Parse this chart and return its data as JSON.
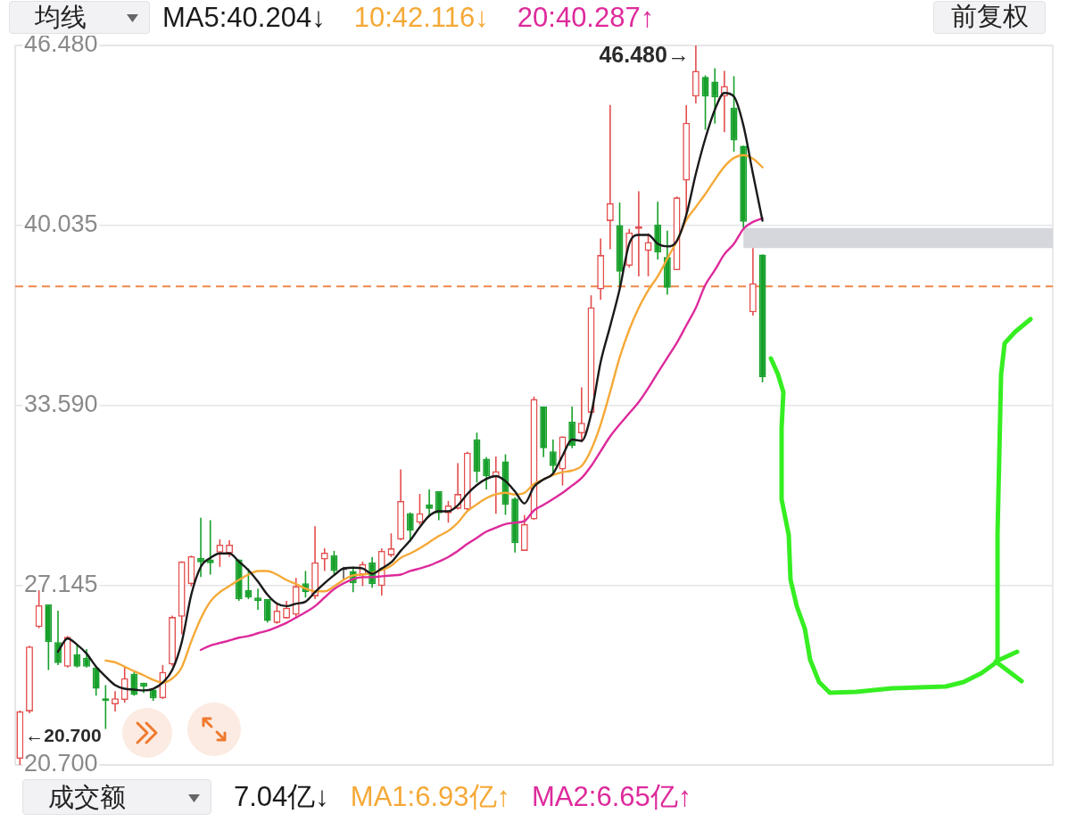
{
  "chart_data": {
    "type": "candlestick",
    "categories": [
      null,
      null,
      null,
      null,
      null,
      null,
      null,
      null,
      null,
      null,
      null,
      null,
      null,
      null,
      null,
      null,
      null,
      null,
      null,
      null,
      null,
      null,
      null,
      null,
      null,
      null,
      null,
      null,
      null,
      null,
      null,
      null,
      null,
      null,
      null,
      null,
      null,
      null,
      null,
      null,
      null,
      null,
      null,
      null,
      null,
      null,
      null,
      null,
      null,
      null,
      null,
      null,
      null,
      null,
      null,
      null,
      null,
      null,
      null,
      null,
      null,
      null,
      null,
      null,
      null,
      null,
      null,
      null,
      null,
      null,
      null,
      null,
      null,
      null,
      null,
      null,
      null,
      null,
      null,
      null,
      null,
      null,
      null,
      null,
      null,
      null,
      null,
      null,
      null,
      null,
      null,
      null,
      null,
      null,
      null,
      null,
      null,
      null,
      null,
      null,
      null,
      null,
      null,
      null,
      null,
      null,
      null,
      null,
      null
    ],
    "ohlc": [
      [
        20.92,
        22.65,
        20.7,
        22.62
      ],
      [
        22.62,
        24.97,
        22.55,
        24.94
      ],
      [
        25.64,
        26.96,
        25.6,
        26.42
      ],
      [
        26.45,
        26.45,
        24.1,
        25.1
      ],
      [
        25.1,
        26.23,
        24.28,
        24.35
      ],
      [
        24.22,
        25.32,
        24.19,
        25.29
      ],
      [
        24.66,
        24.98,
        24.19,
        24.22
      ],
      [
        24.54,
        24.85,
        24.19,
        24.22
      ],
      [
        24.19,
        24.19,
        23.18,
        23.43
      ],
      [
        23.09,
        23.56,
        21.99,
        23.0
      ],
      [
        22.87,
        23.34,
        22.62,
        23.09
      ],
      [
        23.03,
        24.19,
        22.93,
        23.81
      ],
      [
        23.97,
        24.03,
        23.18,
        23.21
      ],
      [
        23.65,
        23.65,
        23.28,
        23.5
      ],
      [
        23.4,
        23.4,
        23.0,
        23.09
      ],
      [
        23.09,
        24.28,
        23.06,
        24.03
      ],
      [
        24.3,
        26.05,
        24.25,
        26.0
      ],
      [
        26.01,
        28.0,
        25.38,
        27.99
      ],
      [
        27.18,
        28.2,
        27.1,
        28.18
      ],
      [
        28.12,
        29.56,
        27.43,
        27.96
      ],
      [
        28.06,
        29.47,
        27.52,
        27.93
      ],
      [
        28.31,
        28.78,
        27.8,
        28.59
      ],
      [
        28.28,
        28.75,
        28.15,
        28.59
      ],
      [
        28.06,
        28.06,
        26.58,
        26.64
      ],
      [
        26.96,
        27.74,
        26.64,
        26.7
      ],
      [
        26.7,
        27.02,
        26.26,
        26.58
      ],
      [
        26.64,
        26.64,
        25.8,
        25.86
      ],
      [
        25.79,
        26.48,
        25.76,
        26.23
      ],
      [
        25.95,
        26.58,
        25.95,
        26.33
      ],
      [
        26.08,
        27.4,
        26.01,
        27.11
      ],
      [
        27.21,
        27.65,
        26.7,
        26.89
      ],
      [
        26.74,
        29.25,
        26.64,
        27.96
      ],
      [
        28.06,
        28.46,
        27.65,
        28.31
      ],
      [
        28.21,
        28.37,
        27.52,
        27.65
      ],
      [
        27.68,
        27.8,
        27.33,
        27.68
      ],
      [
        27.65,
        27.8,
        26.89,
        27.21
      ],
      [
        27.52,
        27.99,
        27.11,
        27.9
      ],
      [
        27.96,
        28.15,
        27.05,
        27.18
      ],
      [
        27.11,
        28.46,
        26.77,
        28.37
      ],
      [
        28.21,
        29.0,
        28.15,
        28.46
      ],
      [
        28.78,
        31.29,
        28.75,
        30.16
      ],
      [
        29.72,
        29.75,
        28.69,
        29.09
      ],
      [
        29.38,
        30.41,
        29.31,
        29.72
      ],
      [
        30.04,
        30.57,
        29.57,
        29.88
      ],
      [
        30.51,
        30.51,
        29.47,
        29.72
      ],
      [
        29.72,
        30.16,
        29.38,
        30.0
      ],
      [
        29.88,
        31.51,
        29.85,
        30.41
      ],
      [
        29.85,
        31.92,
        29.82,
        31.89
      ],
      [
        32.36,
        32.61,
        30.82,
        31.2
      ],
      [
        31.67,
        31.73,
        30.57,
        31.04
      ],
      [
        31.0,
        31.75,
        29.7,
        31.23
      ],
      [
        31.58,
        31.83,
        29.66,
        30.02
      ],
      [
        30.24,
        30.29,
        28.31,
        28.65
      ],
      [
        28.37,
        29.65,
        28.37,
        29.33
      ],
      [
        29.5,
        33.9,
        29.48,
        33.81
      ],
      [
        33.54,
        33.54,
        31.73,
        32.05
      ],
      [
        31.94,
        32.36,
        31.14,
        31.41
      ],
      [
        31.29,
        32.47,
        30.71,
        32.47
      ],
      [
        33.0,
        33.54,
        32.05,
        32.14
      ],
      [
        32.58,
        34.23,
        32.26,
        32.96
      ],
      [
        33.32,
        37.53,
        33.27,
        37.1
      ],
      [
        37.74,
        39.56,
        37.37,
        38.97
      ],
      [
        40.19,
        44.35,
        39.18,
        40.83
      ],
      [
        40.04,
        40.85,
        37.85,
        38.37
      ],
      [
        38.59,
        39.91,
        38.52,
        39.78
      ],
      [
        39.91,
        41.26,
        38.21,
        40.0
      ],
      [
        39.12,
        39.75,
        38.21,
        39.44
      ],
      [
        40.06,
        40.88,
        38.81,
        39.06
      ],
      [
        38.9,
        39.84,
        37.55,
        37.8
      ],
      [
        38.43,
        41.07,
        38.43,
        41.04
      ],
      [
        41.64,
        44.34,
        40.41,
        43.71
      ],
      [
        44.65,
        46.48,
        44.4,
        45.57
      ],
      [
        45.35,
        45.41,
        43.46,
        44.65
      ],
      [
        45.19,
        45.66,
        43.68,
        44.62
      ],
      [
        44.65,
        45.57,
        43.37,
        45.03
      ],
      [
        44.25,
        45.38,
        42.67,
        43.08
      ],
      [
        42.89,
        42.89,
        39.94,
        40.16
      ],
      [
        36.92,
        39.22,
        36.8,
        37.96
      ],
      [
        38.99,
        38.99,
        34.41,
        34.6
      ],
      null,
      null,
      null,
      null,
      null,
      null,
      null,
      null,
      null,
      null,
      null,
      null,
      null,
      null,
      null,
      null,
      null,
      null,
      null,
      null,
      null,
      null,
      null,
      null,
      null,
      null,
      null,
      null,
      null,
      null
    ],
    "colors": [
      "#e34d4d",
      "#e34d4d",
      "#e34d4d",
      "#17a02b",
      "#17a02b",
      "#e34d4d",
      "#17a02b",
      "#17a02b",
      "#17a02b",
      "#17a02b",
      "#e34d4d",
      "#e34d4d",
      "#17a02b",
      "#17a02b",
      "#17a02b",
      "#e34d4d",
      "#e34d4d",
      "#e34d4d",
      "#e34d4d",
      "#17a02b",
      "#17a02b",
      "#e34d4d",
      "#e34d4d",
      "#17a02b",
      "#17a02b",
      "#17a02b",
      "#17a02b",
      "#e34d4d",
      "#e34d4d",
      "#e34d4d",
      "#17a02b",
      "#e34d4d",
      "#e34d4d",
      "#17a02b",
      "#555555",
      "#17a02b",
      "#e34d4d",
      "#17a02b",
      "#e34d4d",
      "#e34d4d",
      "#e34d4d",
      "#17a02b",
      "#e34d4d",
      "#17a02b",
      "#17a02b",
      "#e34d4d",
      "#e34d4d",
      "#e34d4d",
      "#17a02b",
      "#17a02b",
      "#e34d4d",
      "#17a02b",
      "#17a02b",
      "#e34d4d",
      "#e34d4d",
      "#17a02b",
      "#17a02b",
      "#e34d4d",
      "#17a02b",
      "#e34d4d",
      "#e34d4d",
      "#e34d4d",
      "#e34d4d",
      "#17a02b",
      "#e34d4d",
      "#e34d4d",
      "#e34d4d",
      "#17a02b",
      "#17a02b",
      "#e34d4d",
      "#e34d4d",
      "#e34d4d",
      "#17a02b",
      "#17a02b",
      "#e34d4d",
      "#17a02b",
      "#17a02b",
      "#e34d4d",
      "#17a02b",
      null,
      null,
      null,
      null,
      null,
      null,
      null,
      null,
      null,
      null,
      null,
      null,
      null,
      null,
      null,
      null,
      null,
      null,
      null,
      null,
      null,
      null,
      null,
      null,
      null,
      null,
      null,
      null,
      null,
      null
    ],
    "series": [
      {
        "type": "line",
        "name": "MA5:40.204↓",
        "color": "#1a1a1a",
        "values": [
          null,
          null,
          null,
          null,
          24.76,
          25.23,
          25.01,
          24.69,
          24.22,
          23.87,
          23.56,
          23.43,
          23.4,
          23.37,
          23.43,
          23.65,
          24.1,
          25.1,
          26.8,
          27.8,
          28.12,
          28.28,
          28.28,
          27.99,
          27.68,
          27.27,
          26.8,
          26.48,
          26.39,
          26.48,
          26.55,
          26.89,
          27.21,
          27.5,
          27.74,
          27.77,
          27.74,
          27.55,
          27.74,
          27.96,
          28.37,
          28.75,
          29.22,
          29.63,
          29.79,
          29.79,
          30.0,
          30.41,
          30.73,
          30.95,
          31.05,
          30.87,
          30.5,
          30.07,
          30.67,
          30.93,
          31.14,
          31.78,
          32.36,
          32.31,
          33.27,
          35.13,
          36.42,
          37.75,
          39.37,
          39.69,
          39.69,
          39.37,
          39.28,
          39.47,
          40.41,
          41.88,
          43.15,
          44.18,
          44.78,
          44.65,
          43.61,
          41.88,
          40.204,
          null,
          null,
          null,
          null,
          null,
          null,
          null,
          null,
          null,
          null,
          null,
          null,
          null,
          null,
          null,
          null,
          null,
          null,
          null,
          null,
          null,
          null,
          null,
          null,
          null,
          null,
          null,
          null,
          null,
          null
        ]
      },
      {
        "type": "line",
        "name": "10:42.116↓",
        "color": "#f5a937",
        "values": [
          null,
          null,
          null,
          null,
          null,
          null,
          null,
          null,
          null,
          24.44,
          24.38,
          24.22,
          24.06,
          23.91,
          23.75,
          23.65,
          23.8,
          24.2,
          25.13,
          25.95,
          26.55,
          26.89,
          27.11,
          27.33,
          27.52,
          27.65,
          27.65,
          27.52,
          27.33,
          27.18,
          27.02,
          26.92,
          26.92,
          27.1,
          27.33,
          27.49,
          27.52,
          27.58,
          27.68,
          27.84,
          28.12,
          28.28,
          28.46,
          28.68,
          28.9,
          29.09,
          29.38,
          29.79,
          30.04,
          30.26,
          30.4,
          30.45,
          30.39,
          30.45,
          30.77,
          30.93,
          31.09,
          31.19,
          31.25,
          31.41,
          31.99,
          32.9,
          34.07,
          35.3,
          36.29,
          37.08,
          37.71,
          38.21,
          38.84,
          39.47,
          40.22,
          40.69,
          41.16,
          41.67,
          42.14,
          42.45,
          42.55,
          42.42,
          42.116,
          null,
          null,
          null,
          null,
          null,
          null,
          null,
          null,
          null,
          null,
          null,
          null,
          null,
          null,
          null,
          null,
          null,
          null,
          null,
          null,
          null,
          null,
          null,
          null,
          null,
          null,
          null,
          null,
          null,
          null
        ]
      },
      {
        "type": "line",
        "name": "20:40.287↑",
        "color": "#dd2a9b",
        "values": [
          null,
          null,
          null,
          null,
          null,
          null,
          null,
          null,
          null,
          null,
          null,
          null,
          null,
          null,
          null,
          null,
          null,
          null,
          null,
          24.82,
          24.98,
          25.07,
          25.16,
          25.26,
          25.32,
          25.42,
          25.51,
          25.64,
          25.79,
          25.98,
          26.17,
          26.39,
          26.7,
          27.0,
          27.21,
          27.36,
          27.43,
          27.43,
          27.46,
          27.49,
          27.52,
          27.65,
          27.74,
          27.84,
          27.99,
          28.15,
          28.37,
          28.62,
          28.84,
          29.06,
          29.2,
          29.33,
          29.38,
          29.44,
          29.82,
          30.02,
          30.23,
          30.45,
          30.71,
          30.98,
          31.41,
          31.94,
          32.47,
          32.9,
          33.3,
          33.7,
          34.2,
          34.75,
          35.29,
          35.82,
          36.45,
          37.08,
          37.9,
          38.43,
          39.0,
          39.37,
          39.91,
          40.16,
          40.287,
          null,
          null,
          null,
          null,
          null,
          null,
          null,
          null,
          null,
          null,
          null,
          null,
          null,
          null,
          null,
          null,
          null,
          null,
          null,
          null,
          null,
          null,
          null,
          null,
          null,
          null,
          null,
          null,
          null,
          null
        ]
      }
    ],
    "ylim": [
      20.7,
      46.48
    ],
    "yticks": [
      {
        "value": 20.7,
        "label": "20.700"
      },
      {
        "value": 27.145,
        "label": "27.145"
      },
      {
        "value": 33.59,
        "label": "33.590"
      },
      {
        "value": 40.035,
        "label": "40.035"
      },
      {
        "value": 46.48,
        "label": "46.480"
      }
    ],
    "tick_labels": "y",
    "grid": "y",
    "legend": "top",
    "legend_title": "均线",
    "ref_lines": [
      {
        "axis": "y",
        "value": 37.85,
        "color": "#f0884a",
        "line_style": "dashed"
      }
    ],
    "bands": [
      {
        "axis": "y",
        "from": 39.22,
        "to": 39.94,
        "color": "#d5d7dc"
      }
    ],
    "annotations": [
      "46.480→",
      "←20.700",
      "前复权",
      "成交额",
      "7.04亿↓",
      "MA1:6.93亿↑",
      "MA2:6.65亿↑"
    ]
  }
}
